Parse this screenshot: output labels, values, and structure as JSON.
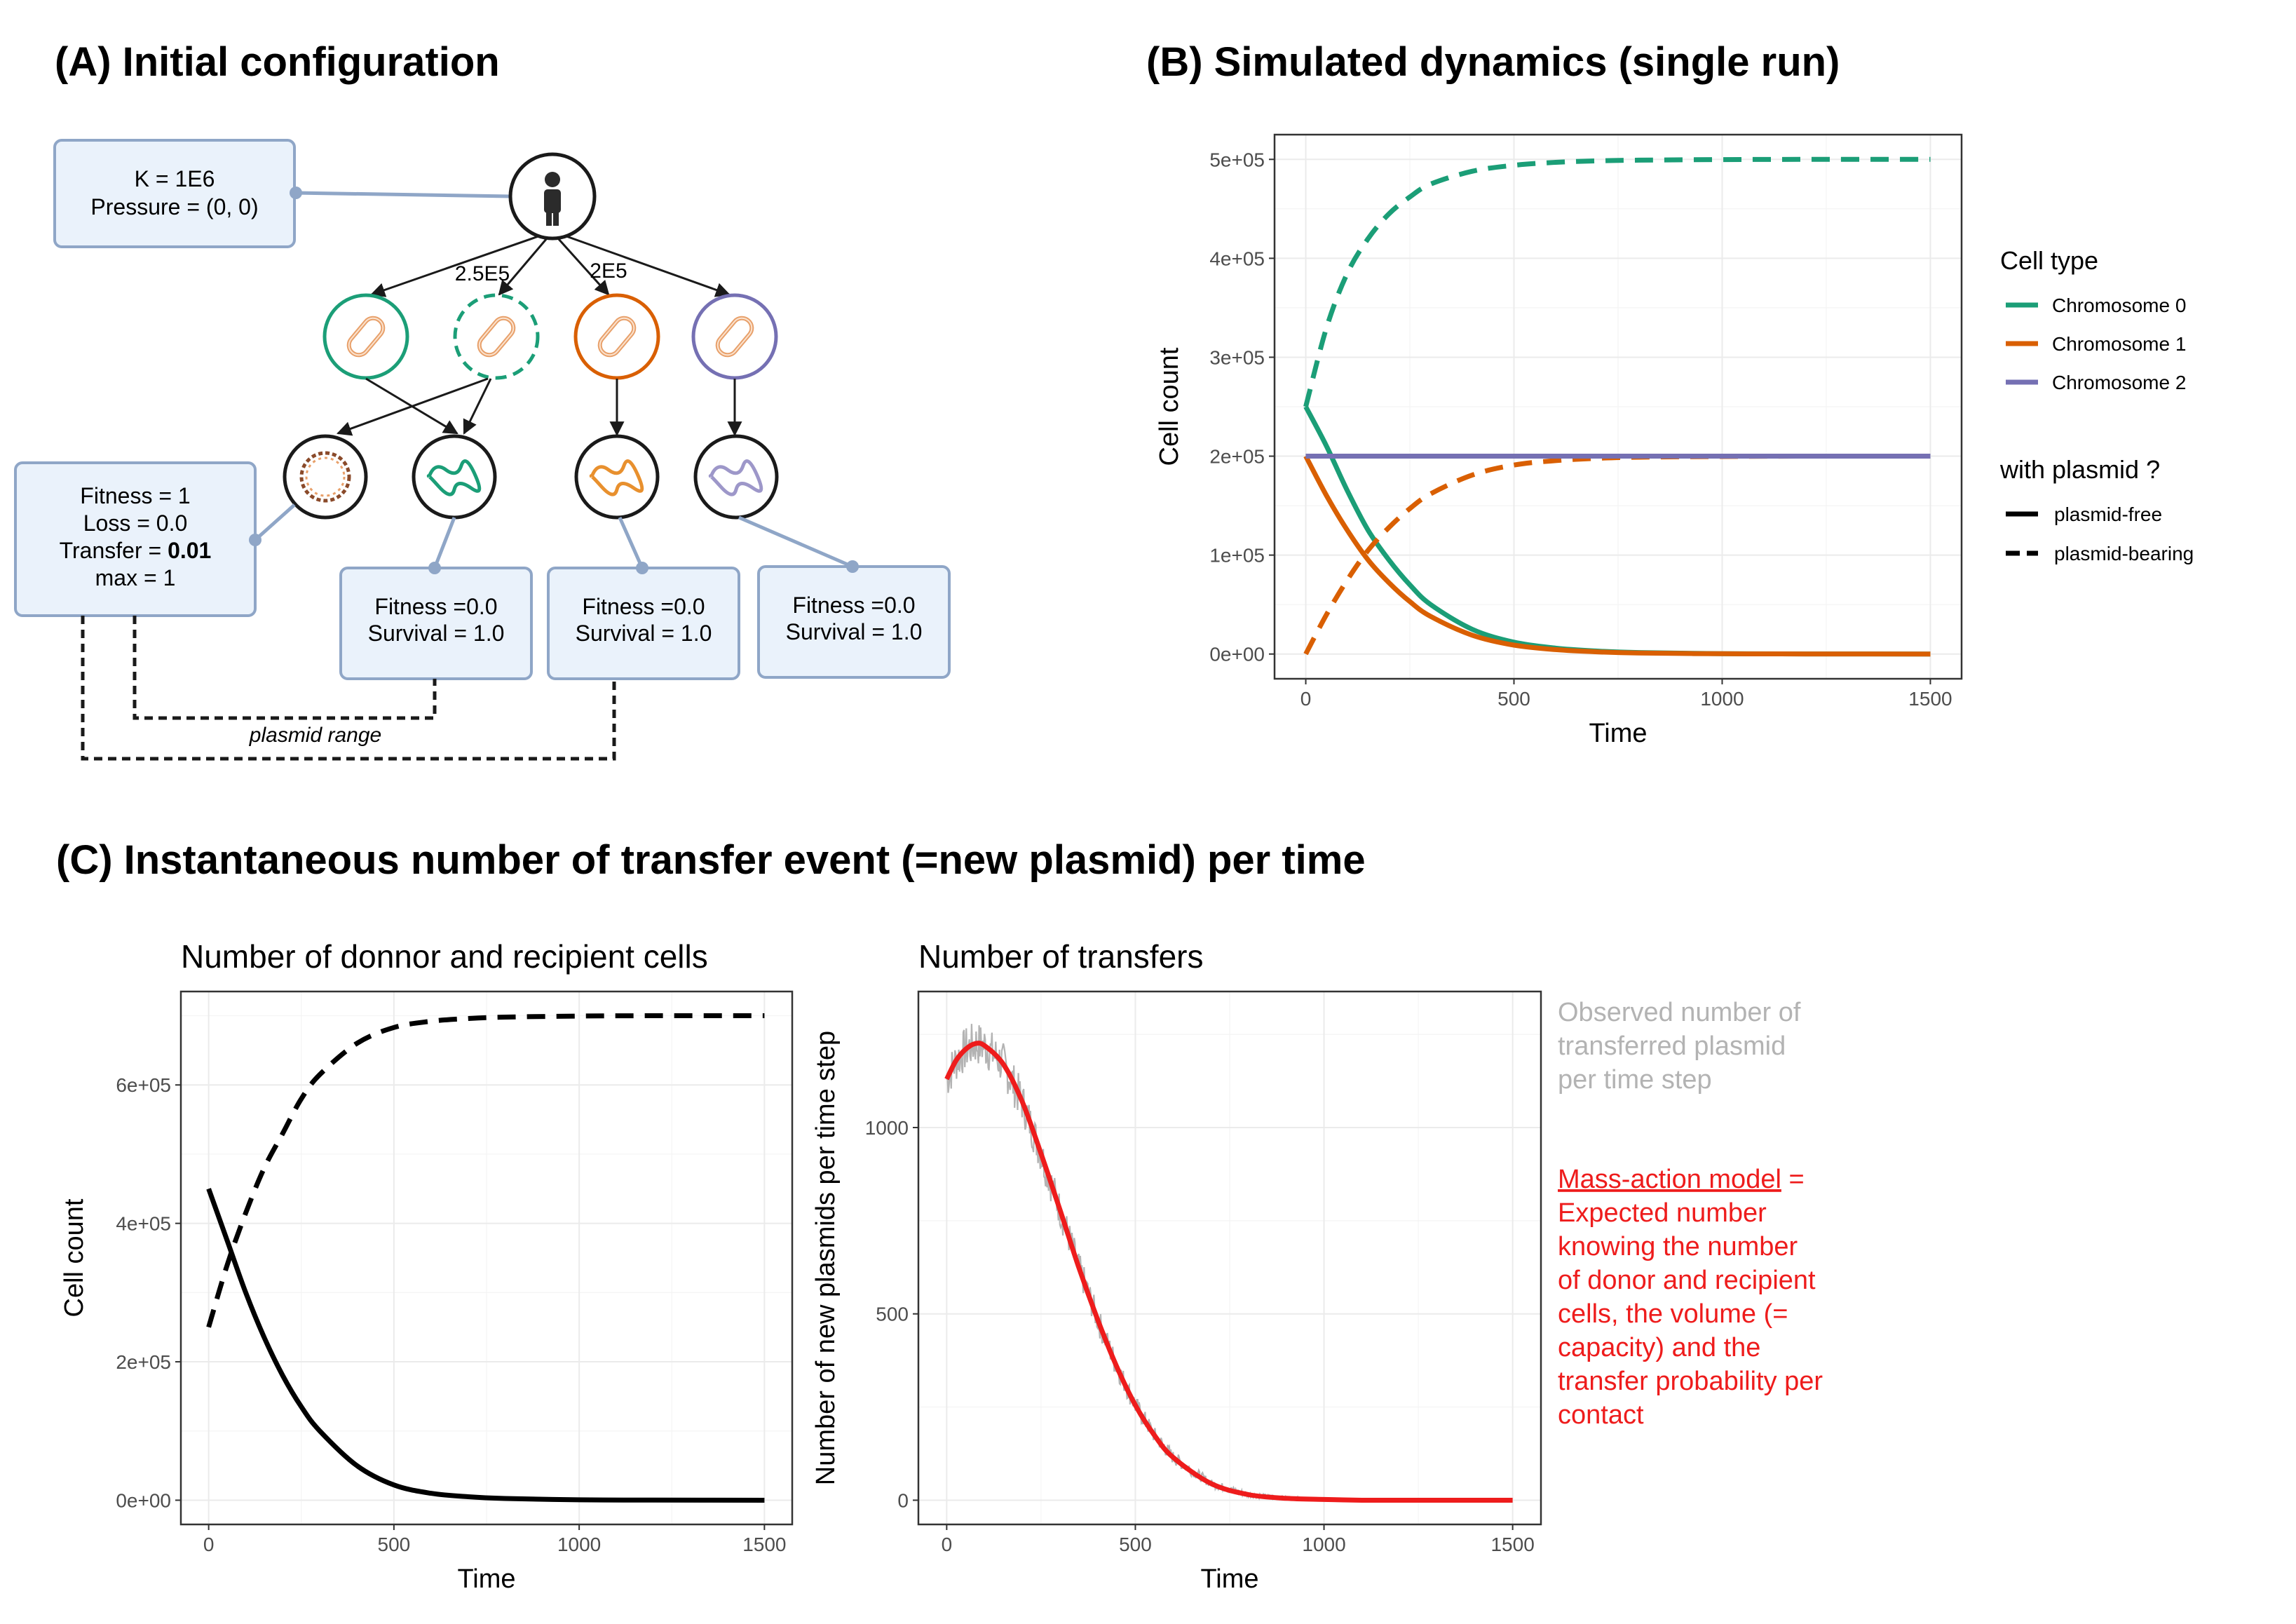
{
  "panel_a": {
    "title": "(A) Initial configuration",
    "host_box": [
      "K = 1E6",
      "Pressure = (0, 0)"
    ],
    "edge_labels": [
      "2.5E5",
      "2E5"
    ],
    "plasmid_box": {
      "lines": [
        "Fitness = 1",
        "Loss = 0.0"
      ],
      "transfer_prefix": "Transfer = ",
      "transfer_value": "0.01",
      "max_line": "max = 1"
    },
    "chrom_boxes": [
      [
        "Fitness =0.0",
        "Survival = 1.0"
      ],
      [
        "Fitness =0.0",
        "Survival = 1.0"
      ],
      [
        "Fitness =0.0",
        "Survival = 1.0"
      ]
    ],
    "range_label": "plasmid range",
    "colors": {
      "chromosome_0": "#1b9e77",
      "chromosome_1": "#d95f02",
      "chromosome_2": "#7570b3",
      "box_fill": "#eaf2fb",
      "box_stroke": "#8fa6c7"
    }
  },
  "panel_b": {
    "title": "(B) Simulated dynamics (single run)",
    "legend": {
      "color_title": "Cell type",
      "color_items": [
        {
          "label": "Chromosome 0",
          "color": "#1b9e77"
        },
        {
          "label": "Chromosome 1",
          "color": "#d95f02"
        },
        {
          "label": "Chromosome 2",
          "color": "#7570b3"
        }
      ],
      "linetype_title": "with plasmid ?",
      "linetype_items": [
        {
          "label": "plasmid-free",
          "dash": "solid"
        },
        {
          "label": "plasmid-bearing",
          "dash": "dashed"
        }
      ]
    }
  },
  "panel_c": {
    "title": "(C) Instantaneous number of transfer event (=new plasmid) per time",
    "observed_note": [
      "Observed number of",
      "transferred plasmid",
      "per time step"
    ],
    "model_note": {
      "link": "Mass-action model",
      "suffix": " =",
      "lines": [
        "Expected number",
        "knowing the number",
        "of donor and recipient",
        "cells, the volume (=",
        "capacity) and the",
        "transfer probability per",
        "contact"
      ]
    }
  },
  "chart_data": [
    {
      "id": "dynamics",
      "type": "line",
      "title": "",
      "xlabel": "Time",
      "ylabel": "Cell count",
      "xlim": [
        0,
        1500
      ],
      "ylim": [
        0,
        500000
      ],
      "x_ticks": [
        0,
        500,
        1000,
        1500
      ],
      "x_tick_labels": [
        "0",
        "500",
        "1000",
        "1500"
      ],
      "y_ticks": [
        0,
        100000,
        200000,
        300000,
        400000,
        500000
      ],
      "y_tick_labels": [
        "0e+00",
        "1e+05",
        "2e+05",
        "3e+05",
        "4e+05",
        "5e+05"
      ],
      "grid": true,
      "legend": "right",
      "x": [
        0,
        50,
        100,
        150,
        200,
        250,
        300,
        400,
        500,
        600,
        700,
        800,
        1000,
        1200,
        1500
      ],
      "series": [
        {
          "name": "Chromosome 0",
          "type": "plasmid-free",
          "color": "#1b9e77",
          "dash": "solid",
          "values": [
            250000,
            210000,
            165000,
            125000,
            95000,
            70000,
            50000,
            25000,
            12000,
            6000,
            3000,
            1500,
            400,
            100,
            0
          ]
        },
        {
          "name": "Chromosome 0",
          "type": "plasmid-bearing",
          "color": "#1b9e77",
          "dash": "dashed",
          "values": [
            250000,
            330000,
            385000,
            420000,
            445000,
            462000,
            475000,
            488000,
            494000,
            497000,
            498500,
            499200,
            499800,
            500000,
            500000
          ]
        },
        {
          "name": "Chromosome 1",
          "type": "plasmid-free",
          "color": "#d95f02",
          "dash": "solid",
          "values": [
            200000,
            160000,
            125000,
            95000,
            72000,
            53000,
            38000,
            19000,
            9000,
            4500,
            2200,
            1000,
            300,
            100,
            0
          ]
        },
        {
          "name": "Chromosome 1",
          "type": "plasmid-bearing",
          "color": "#d95f02",
          "dash": "dashed",
          "values": [
            0,
            40000,
            75000,
            105000,
            128000,
            147000,
            162000,
            181000,
            191000,
            195500,
            197800,
            199000,
            199700,
            200000,
            200000
          ]
        },
        {
          "name": "Chromosome 2",
          "type": "plasmid-free",
          "color": "#7570b3",
          "dash": "solid",
          "values": [
            200000,
            200000,
            200000,
            200000,
            200000,
            200000,
            200000,
            200000,
            200000,
            200000,
            200000,
            200000,
            200000,
            200000,
            200000
          ]
        }
      ]
    },
    {
      "id": "donor_recipient",
      "type": "line",
      "title": "Number of donnor and recipient cells",
      "xlabel": "Time",
      "ylabel": "Cell count",
      "xlim": [
        0,
        1500
      ],
      "ylim": [
        0,
        700000
      ],
      "x_ticks": [
        0,
        500,
        1000,
        1500
      ],
      "x_tick_labels": [
        "0",
        "500",
        "1000",
        "1500"
      ],
      "y_ticks": [
        0,
        200000,
        400000,
        600000
      ],
      "y_tick_labels": [
        "0e+00",
        "2e+05",
        "4e+05",
        "6e+05"
      ],
      "grid": true,
      "x": [
        0,
        50,
        100,
        150,
        200,
        250,
        300,
        400,
        500,
        600,
        700,
        800,
        1000,
        1200,
        1500
      ],
      "series": [
        {
          "dash": "solid",
          "color": "#000000",
          "values": [
            450000,
            375000,
            300000,
            235000,
            180000,
            135000,
            100000,
            50000,
            22000,
            10000,
            5000,
            2500,
            600,
            150,
            0
          ]
        },
        {
          "dash": "dashed",
          "color": "#000000",
          "values": [
            250000,
            340000,
            415000,
            480000,
            530000,
            580000,
            615000,
            660000,
            683000,
            692000,
            696000,
            698000,
            699500,
            700000,
            700000
          ]
        }
      ]
    },
    {
      "id": "transfers",
      "type": "line",
      "title": "Number of transfers",
      "xlabel": "Time",
      "ylabel": "Number of new plasmids per time step",
      "xlim": [
        0,
        1500
      ],
      "ylim": [
        0,
        1300
      ],
      "x_ticks": [
        0,
        500,
        1000,
        1500
      ],
      "x_tick_labels": [
        "0",
        "500",
        "1000",
        "1500"
      ],
      "y_ticks": [
        0,
        500,
        1000
      ],
      "y_tick_labels": [
        "0",
        "500",
        "1000"
      ],
      "grid": true,
      "x": [
        0,
        25,
        50,
        75,
        100,
        150,
        200,
        250,
        300,
        350,
        400,
        450,
        500,
        550,
        600,
        700,
        800,
        900,
        1000,
        1100,
        1200,
        1300,
        1500
      ],
      "series": [
        {
          "name": "Observed number of transferred plasmid per time step",
          "color": "#b3b3b3",
          "noise": 60,
          "values": [
            1130,
            1180,
            1210,
            1225,
            1220,
            1170,
            1070,
            930,
            780,
            625,
            485,
            360,
            255,
            175,
            115,
            45,
            15,
            5,
            2,
            0,
            0,
            0,
            0
          ]
        },
        {
          "name": "Mass-action model",
          "color": "#ee1c1c",
          "values": [
            1130,
            1180,
            1210,
            1225,
            1220,
            1170,
            1070,
            930,
            780,
            625,
            485,
            360,
            255,
            175,
            115,
            45,
            15,
            5,
            2,
            0,
            0,
            0,
            0
          ]
        }
      ]
    }
  ]
}
